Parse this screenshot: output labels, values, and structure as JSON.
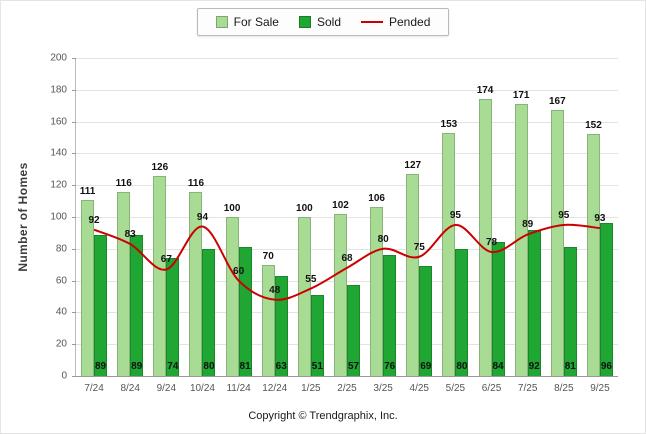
{
  "footer": {
    "copyright": "Copyright © Trendgraphix, Inc."
  },
  "chart_data": {
    "type": "bar",
    "categories": [
      "7/24",
      "8/24",
      "9/24",
      "10/24",
      "11/24",
      "12/24",
      "1/25",
      "2/25",
      "3/25",
      "4/25",
      "5/25",
      "6/25",
      "7/25",
      "8/25",
      "9/25"
    ],
    "series": [
      {
        "name": "For Sale",
        "type": "bar",
        "color": "#A8DC94",
        "values": [
          111,
          116,
          126,
          116,
          100,
          70,
          100,
          102,
          106,
          127,
          153,
          174,
          171,
          167,
          152
        ]
      },
      {
        "name": "Sold",
        "type": "bar",
        "color": "#1FA633",
        "values": [
          89,
          89,
          74,
          80,
          81,
          63,
          51,
          57,
          76,
          69,
          80,
          84,
          92,
          81,
          96
        ]
      },
      {
        "name": "Pended",
        "type": "line",
        "color": "#CC0000",
        "values": [
          92,
          83,
          67,
          94,
          60,
          48,
          55,
          68,
          80,
          75,
          95,
          78,
          89,
          95,
          93
        ]
      }
    ],
    "title": "",
    "xlabel": "",
    "ylabel": "Number of Homes",
    "ylim": [
      0,
      200
    ],
    "ytick_step": 20,
    "grid": true,
    "legend_position": "top"
  }
}
